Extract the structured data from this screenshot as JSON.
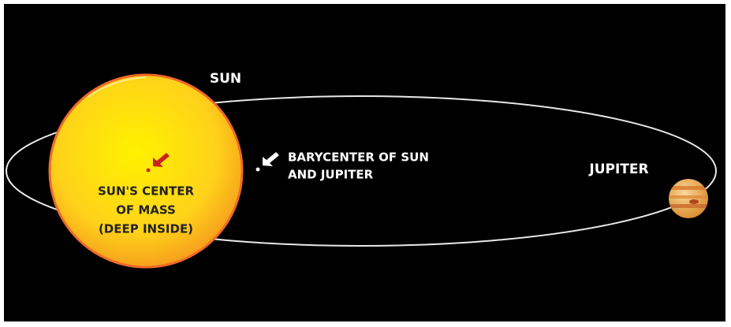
{
  "labels": {
    "sun": "SUN",
    "sun_center_lines": [
      "SUN'S CENTER",
      "OF MASS",
      "(DEEP INSIDE)"
    ],
    "barycenter_lines": [
      "BARYCENTER OF SUN",
      "AND JUPITER"
    ],
    "jupiter": "JUPITER"
  }
}
